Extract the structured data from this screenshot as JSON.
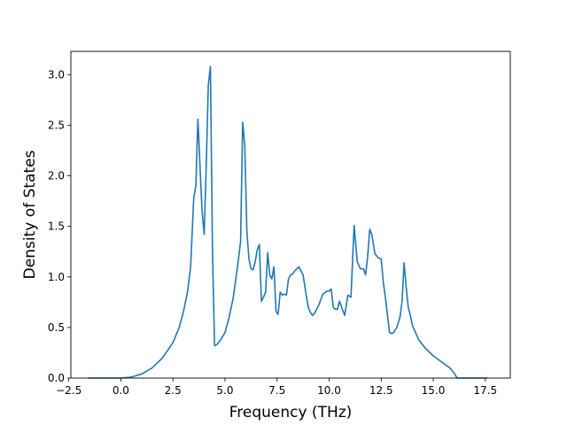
{
  "chart_data": {
    "type": "line",
    "title": "",
    "xlabel": "Frequency (THz)",
    "ylabel": "Density of States",
    "xlim": [
      -2.4,
      18.7
    ],
    "ylim": [
      0,
      3.23
    ],
    "xticks": [
      -2.5,
      0.0,
      2.5,
      5.0,
      7.5,
      10.0,
      12.5,
      15.0,
      17.5
    ],
    "xtick_labels": [
      "−2.5",
      "0.0",
      "2.5",
      "5.0",
      "7.5",
      "10.0",
      "12.5",
      "15.0",
      "17.5"
    ],
    "yticks": [
      0.0,
      0.5,
      1.0,
      1.5,
      2.0,
      2.5,
      3.0
    ],
    "ytick_labels": [
      "0.0",
      "0.5",
      "1.0",
      "1.5",
      "2.0",
      "2.5",
      "3.0"
    ],
    "grid": false,
    "series": [
      {
        "color": "#1f77b4",
        "x": [
          -1.6,
          -0.5,
          0.0,
          0.5,
          1.0,
          1.5,
          2.0,
          2.5,
          2.8,
          3.0,
          3.2,
          3.35,
          3.5,
          3.6,
          3.7,
          3.8,
          3.9,
          4.0,
          4.1,
          4.2,
          4.3,
          4.4,
          4.5,
          4.6,
          4.8,
          5.0,
          5.2,
          5.4,
          5.6,
          5.75,
          5.85,
          5.95,
          6.05,
          6.15,
          6.25,
          6.35,
          6.45,
          6.55,
          6.65,
          6.75,
          6.85,
          6.95,
          7.05,
          7.15,
          7.25,
          7.35,
          7.45,
          7.55,
          7.65,
          7.75,
          7.85,
          7.95,
          8.05,
          8.15,
          8.25,
          8.35,
          8.45,
          8.55,
          8.65,
          8.75,
          8.9,
          9.0,
          9.1,
          9.2,
          9.3,
          9.5,
          9.7,
          9.9,
          10.0,
          10.1,
          10.2,
          10.3,
          10.4,
          10.5,
          10.6,
          10.75,
          10.9,
          11.05,
          11.2,
          11.35,
          11.5,
          11.65,
          11.75,
          11.85,
          11.95,
          12.05,
          12.2,
          12.35,
          12.5,
          12.6,
          12.7,
          12.8,
          12.9,
          13.0,
          13.1,
          13.25,
          13.4,
          13.5,
          13.6,
          13.7,
          13.8,
          13.9,
          14.0,
          14.3,
          14.6,
          15.0,
          15.4,
          15.8,
          16.0,
          16.15,
          16.4,
          17.0,
          17.6
        ],
        "y": [
          0.0,
          0.0,
          0.0,
          0.01,
          0.04,
          0.1,
          0.2,
          0.35,
          0.5,
          0.65,
          0.85,
          1.1,
          1.78,
          1.9,
          2.56,
          2.1,
          1.65,
          1.42,
          2.1,
          2.9,
          3.08,
          1.25,
          0.32,
          0.33,
          0.38,
          0.45,
          0.6,
          0.8,
          1.1,
          1.35,
          2.53,
          2.3,
          1.45,
          1.18,
          1.08,
          1.07,
          1.15,
          1.27,
          1.32,
          0.76,
          0.8,
          0.85,
          1.24,
          1.02,
          0.98,
          1.1,
          0.66,
          0.63,
          0.85,
          0.82,
          0.83,
          0.82,
          0.98,
          1.02,
          1.03,
          1.06,
          1.08,
          1.1,
          1.06,
          1.02,
          0.82,
          0.7,
          0.65,
          0.62,
          0.64,
          0.72,
          0.83,
          0.86,
          0.86,
          0.88,
          0.7,
          0.68,
          0.68,
          0.76,
          0.7,
          0.62,
          0.82,
          0.8,
          1.51,
          1.15,
          1.08,
          1.08,
          1.02,
          1.2,
          1.47,
          1.42,
          1.23,
          1.19,
          1.18,
          0.95,
          0.8,
          0.63,
          0.45,
          0.44,
          0.45,
          0.5,
          0.6,
          0.75,
          1.14,
          0.9,
          0.7,
          0.62,
          0.52,
          0.38,
          0.3,
          0.22,
          0.16,
          0.1,
          0.05,
          0.0,
          0.0,
          0.0,
          0.0
        ]
      }
    ]
  }
}
